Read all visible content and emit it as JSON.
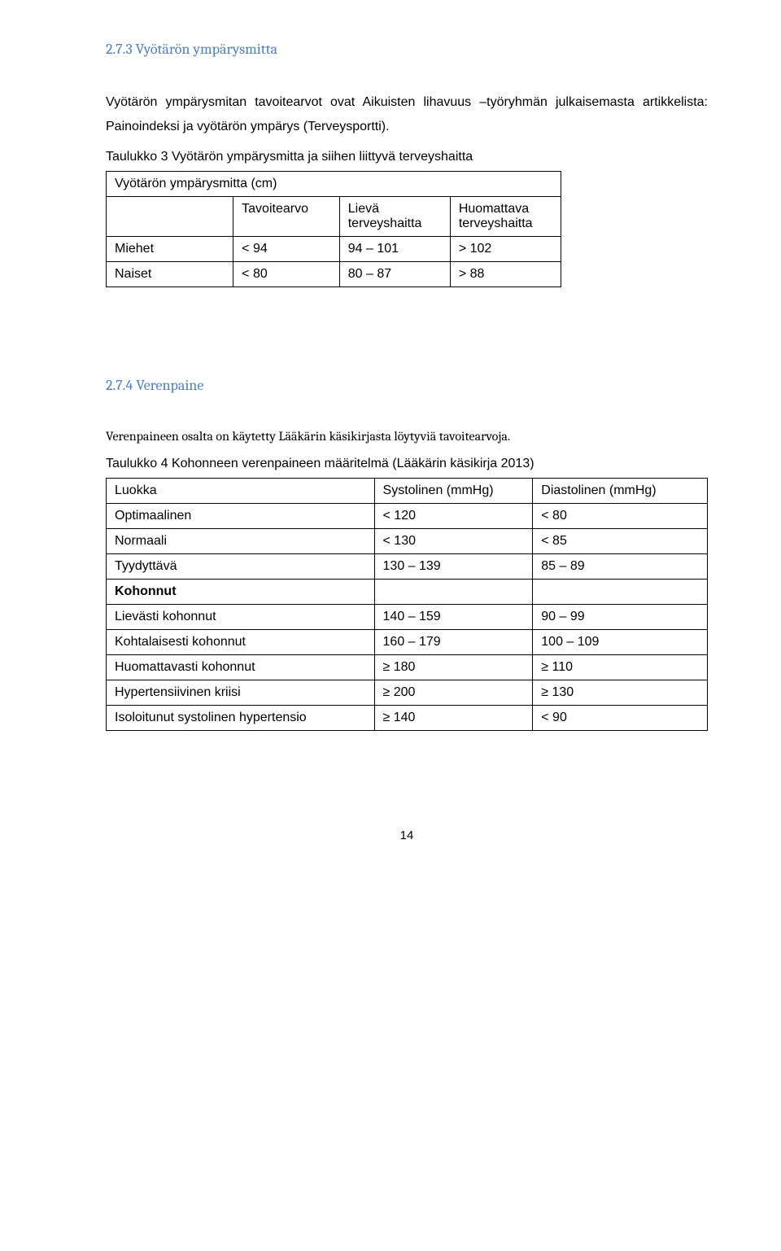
{
  "section1": {
    "heading": "2.7.3 Vyötärön ympärysmitta",
    "intro": "Vyötärön ympärysmitan tavoitearvot ovat Aikuisten lihavuus –työryhmän julkaisemasta artikkelista: Painoindeksi ja vyötärön ympärys (Terveysportti).",
    "tableCaption": "Taulukko 3 Vyötärön ympärysmitta ja siihen liittyvä terveyshaitta",
    "tableTitleRow": "Vyötärön ympärysmitta (cm)",
    "headers": {
      "col2": "Tavoitearvo",
      "col3a": "Lievä",
      "col3b": "terveyshaitta",
      "col4a": "Huomattava",
      "col4b": "terveyshaitta"
    },
    "rows": [
      {
        "label": "Miehet",
        "v1": "< 94",
        "v2": "94 – 101",
        "v3": "> 102"
      },
      {
        "label": "Naiset",
        "v1": "< 80",
        "v2": "80 – 87",
        "v3": "> 88"
      }
    ]
  },
  "section2": {
    "heading": "2.7.4 Verenpaine",
    "intro": "Verenpaineen osalta on käytetty Lääkärin käsikirjasta löytyviä tavoitearvoja.",
    "tableCaption": "Taulukko 4   Kohonneen verenpaineen määritelmä (Lääkärin käsikirja 2013)",
    "headers": {
      "c1": "Luokka",
      "c2": "Systolinen (mmHg)",
      "c3": "Diastolinen (mmHg)"
    },
    "rows": [
      {
        "label": "Optimaalinen",
        "v1": "< 120",
        "v2": "< 80"
      },
      {
        "label": "Normaali",
        "v1": "< 130",
        "v2": "< 85"
      },
      {
        "label": "Tyydyttävä",
        "v1": "130 – 139",
        "v2": "85 – 89"
      }
    ],
    "kohonnut": "Kohonnut",
    "rows2": [
      {
        "label": "Lievästi kohonnut",
        "v1": "140 – 159",
        "v2": "90 – 99"
      },
      {
        "label": "Kohtalaisesti kohonnut",
        "v1": "160 – 179",
        "v2": "100 – 109"
      },
      {
        "label": "Huomattavasti kohonnut",
        "v1": "≥ 180",
        "v2": "≥ 110"
      },
      {
        "label": "Hypertensiivinen kriisi",
        "v1": "≥ 200",
        "v2": "≥ 130"
      },
      {
        "label": "Isoloitunut systolinen hypertensio",
        "v1": "≥ 140",
        "v2": "< 90"
      }
    ]
  },
  "pageNumber": "14"
}
